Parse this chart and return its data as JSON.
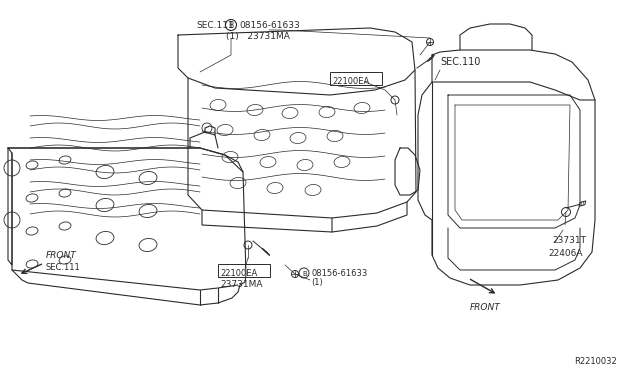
{
  "background_color": "#ffffff",
  "line_color": "#2a2a2a",
  "lw": 0.8,
  "ref_code": "R2210032",
  "labels": {
    "b_label_top": "B 08156-61633",
    "b_sub_top": "(1)   23731MA",
    "ea_top": "22100EA",
    "sec111_top": "SEC.111",
    "sec110": "SEC.110",
    "front_left": "FRONT",
    "sec111_bot": "SEC.111",
    "b_label_bot": "B 08156-61633",
    "b_sub_bot": "(1)",
    "ea_bot": "22100EA",
    "ma_bot": "23731MA",
    "front_right": "FRONT",
    "part_23731T": "23731T",
    "part_22406A": "22406A"
  }
}
